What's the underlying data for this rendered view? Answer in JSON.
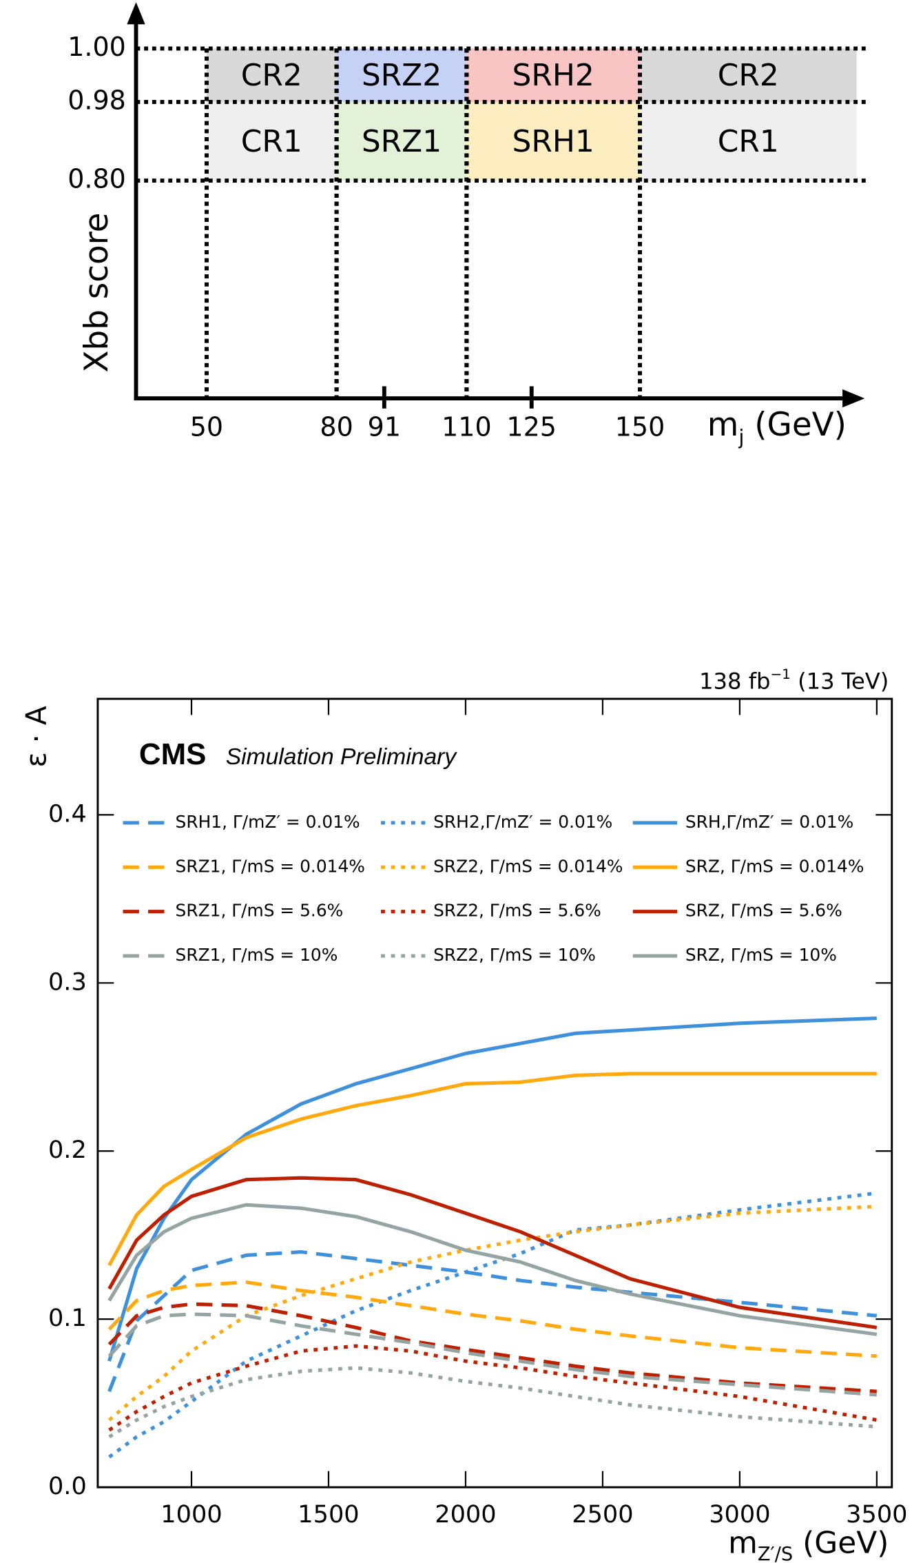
{
  "chart_data": [
    {
      "type": "regions",
      "ylabel": "Xbb score",
      "xlabel": [
        "m",
        "j",
        " (GeV)"
      ],
      "xlim": [
        34,
        200
      ],
      "xticks": [
        50,
        80,
        91,
        110,
        125,
        150
      ],
      "ylim": [
        0,
        1
      ],
      "yticks": [
        {
          "value": 0.8,
          "label": "0.80"
        },
        {
          "value": 0.98,
          "label": "0.98"
        },
        {
          "value": 1,
          "label": "1.00"
        }
      ],
      "regions": [
        {
          "name": "CR2",
          "x": [
            50,
            80
          ],
          "y": [
            0.98,
            1
          ],
          "color": "#d9d9d9"
        },
        {
          "name": "SRZ2",
          "x": [
            80,
            110
          ],
          "y": [
            0.98,
            1
          ],
          "color": "#c6d1f6"
        },
        {
          "name": "SRH2",
          "x": [
            110,
            150
          ],
          "y": [
            0.98,
            1
          ],
          "color": "#f8c4c4"
        },
        {
          "name": "CR2",
          "x": [
            150,
            200
          ],
          "y": [
            0.98,
            1
          ],
          "color": "#d9d9d9"
        },
        {
          "name": "CR1",
          "x": [
            50,
            80
          ],
          "y": [
            0.8,
            0.98
          ],
          "color": "#efefef"
        },
        {
          "name": "SRZ1",
          "x": [
            80,
            110
          ],
          "y": [
            0.8,
            0.98
          ],
          "color": "#e3f1d9"
        },
        {
          "name": "SRH1",
          "x": [
            110,
            150
          ],
          "y": [
            0.8,
            0.98
          ],
          "color": "#fdeec2"
        },
        {
          "name": "CR1",
          "x": [
            150,
            200
          ],
          "y": [
            0.8,
            0.98
          ],
          "color": "#efefef"
        }
      ]
    },
    {
      "type": "line",
      "lumi": [
        "138 fb",
        "−1",
        " (13 TeV)"
      ],
      "experiment": "CMS",
      "subtitle": "Simulation Preliminary",
      "ylabel": "ε · A",
      "xlabel": [
        "m",
        "Z′/S",
        " (GeV)"
      ],
      "xlim": [
        658,
        3555
      ],
      "xticks": [
        1000,
        1500,
        2000,
        2500,
        3000,
        3500
      ],
      "ylim": [
        0,
        0.469
      ],
      "yticks": [
        {
          "value": 0,
          "label": "0.0"
        },
        0.1,
        0.2,
        0.3,
        0.4
      ],
      "x": [
        700,
        800,
        900,
        1000,
        1200,
        1400,
        1600,
        1800,
        2000,
        2200,
        2400,
        2600,
        3000,
        3500
      ],
      "series": [
        {
          "name": "SRH1, Γ/mZ′ = 0.01%",
          "color": "#3f90da",
          "style": "dashed",
          "values": [
            0.057,
            0.099,
            0.114,
            0.129,
            0.138,
            0.14,
            0.136,
            0.132,
            0.128,
            0.123,
            0.119,
            0.116,
            0.11,
            0.102
          ]
        },
        {
          "name": "SRH2,Γ/mZ′ = 0.01%",
          "color": "#3f90da",
          "style": "dotted",
          "values": [
            0.018,
            0.03,
            0.039,
            0.051,
            0.075,
            0.09,
            0.105,
            0.117,
            0.128,
            0.139,
            0.153,
            0.156,
            0.165,
            0.175
          ]
        },
        {
          "name": "SRH,Γ/mZ′ = 0.01%",
          "color": "#3f90da",
          "style": "solid",
          "values": [
            0.075,
            0.13,
            0.16,
            0.183,
            0.21,
            0.228,
            0.24,
            0.249,
            0.258,
            0.264,
            0.27,
            0.272,
            0.276,
            0.279
          ]
        },
        {
          "name": "SRZ1, Γ/mS = 0.014%",
          "color": "#ffa90e",
          "style": "dashed",
          "values": [
            0.094,
            0.111,
            0.117,
            0.12,
            0.122,
            0.117,
            0.113,
            0.108,
            0.103,
            0.099,
            0.094,
            0.09,
            0.083,
            0.078
          ]
        },
        {
          "name": "SRZ2, Γ/mS = 0.014%",
          "color": "#ffa90e",
          "style": "dotted",
          "values": [
            0.04,
            0.054,
            0.066,
            0.081,
            0.102,
            0.114,
            0.124,
            0.134,
            0.141,
            0.147,
            0.152,
            0.156,
            0.163,
            0.167
          ]
        },
        {
          "name": "SRZ, Γ/mS = 0.014%",
          "color": "#ffa90e",
          "style": "solid",
          "values": [
            0.132,
            0.162,
            0.179,
            0.189,
            0.208,
            0.219,
            0.227,
            0.233,
            0.24,
            0.241,
            0.245,
            0.246,
            0.246,
            0.246
          ]
        },
        {
          "name": "SRZ1, Γ/mS = 5.6%",
          "color": "#bd1f01",
          "style": "dashed",
          "values": [
            0.085,
            0.102,
            0.107,
            0.109,
            0.108,
            0.102,
            0.095,
            0.087,
            0.082,
            0.077,
            0.072,
            0.068,
            0.062,
            0.057
          ]
        },
        {
          "name": "SRZ2, Γ/mS = 5.6%",
          "color": "#bd1f01",
          "style": "dotted",
          "values": [
            0.034,
            0.045,
            0.054,
            0.062,
            0.072,
            0.081,
            0.084,
            0.081,
            0.075,
            0.071,
            0.066,
            0.062,
            0.054,
            0.04
          ]
        },
        {
          "name": "SRZ, Γ/mS = 5.6%",
          "color": "#bd1f01",
          "style": "solid",
          "values": [
            0.118,
            0.147,
            0.162,
            0.173,
            0.183,
            0.184,
            0.183,
            0.174,
            0.163,
            0.152,
            0.138,
            0.124,
            0.107,
            0.095
          ]
        },
        {
          "name": "SRZ1, Γ/mS = 10%",
          "color": "#94a4a2",
          "style": "dashed",
          "values": [
            0.078,
            0.096,
            0.102,
            0.103,
            0.102,
            0.096,
            0.091,
            0.086,
            0.08,
            0.075,
            0.07,
            0.066,
            0.061,
            0.055
          ]
        },
        {
          "name": "SRZ2, Γ/mS = 10%",
          "color": "#94a4a2",
          "style": "dotted",
          "values": [
            0.03,
            0.04,
            0.048,
            0.054,
            0.064,
            0.069,
            0.071,
            0.068,
            0.063,
            0.059,
            0.054,
            0.049,
            0.042,
            0.036
          ]
        },
        {
          "name": "SRZ, Γ/mS = 10%",
          "color": "#94a4a2",
          "style": "solid",
          "values": [
            0.111,
            0.138,
            0.152,
            0.16,
            0.168,
            0.166,
            0.161,
            0.152,
            0.141,
            0.134,
            0.123,
            0.115,
            0.102,
            0.091
          ]
        }
      ]
    }
  ]
}
